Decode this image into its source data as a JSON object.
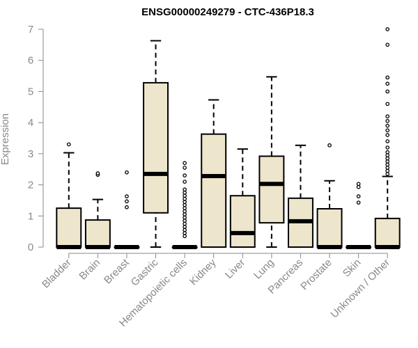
{
  "chart_data": {
    "type": "boxplot",
    "title": "ENSG00000249279 - CTC-436P18.3",
    "xlabel": "",
    "ylabel": "Expression",
    "ylim": [
      0,
      7
    ],
    "yticks": [
      0,
      1,
      2,
      3,
      4,
      5,
      6,
      7
    ],
    "grid": false,
    "legend": "none",
    "colors": {
      "box_fill": "#ede6cc",
      "box_stroke": "#000000",
      "axis": "#888888"
    },
    "categories": [
      "Bladder",
      "Brain",
      "Breast",
      "Gastric",
      "Hematopoietic cells",
      "Kidney",
      "Liver",
      "Lung",
      "Pancreas",
      "Prostate",
      "Skin",
      "Unknown / Other"
    ],
    "boxes": [
      {
        "category": "Bladder",
        "whisker_low": 0,
        "q1": 0,
        "median": 0,
        "q3": 1.25,
        "whisker_high": 3.03,
        "outliers": [
          3.3
        ]
      },
      {
        "category": "Brain",
        "whisker_low": 0,
        "q1": 0,
        "median": 0,
        "q3": 0.87,
        "whisker_high": 1.53,
        "outliers": [
          2.32,
          2.37
        ]
      },
      {
        "category": "Breast",
        "whisker_low": 0,
        "q1": 0,
        "median": 0,
        "q3": 0,
        "whisker_high": 0,
        "outliers": [
          1.28,
          1.47,
          1.63,
          2.4
        ]
      },
      {
        "category": "Gastric",
        "whisker_low": 0,
        "q1": 1.1,
        "median": 2.35,
        "q3": 5.28,
        "whisker_high": 6.63,
        "outliers": []
      },
      {
        "category": "Hematopoietic cells",
        "whisker_low": 0,
        "q1": 0,
        "median": 0,
        "q3": 0,
        "whisker_high": 0,
        "outliers": [
          0.35,
          0.45,
          0.55,
          0.65,
          0.75,
          0.85,
          0.95,
          1.05,
          1.15,
          1.25,
          1.35,
          1.45,
          1.55,
          1.65,
          1.75,
          1.85,
          2.1,
          2.3,
          2.55,
          2.7
        ]
      },
      {
        "category": "Kidney",
        "whisker_low": 0,
        "q1": 0,
        "median": 2.28,
        "q3": 3.63,
        "whisker_high": 4.73,
        "outliers": []
      },
      {
        "category": "Liver",
        "whisker_low": 0,
        "q1": 0,
        "median": 0.45,
        "q3": 1.65,
        "whisker_high": 3.15,
        "outliers": []
      },
      {
        "category": "Lung",
        "whisker_low": 0,
        "q1": 0.78,
        "median": 2.03,
        "q3": 2.92,
        "whisker_high": 5.47,
        "outliers": []
      },
      {
        "category": "Pancreas",
        "whisker_low": 0,
        "q1": 0,
        "median": 0.83,
        "q3": 1.57,
        "whisker_high": 3.27,
        "outliers": []
      },
      {
        "category": "Prostate",
        "whisker_low": 0,
        "q1": 0,
        "median": 0,
        "q3": 1.23,
        "whisker_high": 2.13,
        "outliers": [
          3.27
        ]
      },
      {
        "category": "Skin",
        "whisker_low": 0,
        "q1": 0,
        "median": 0,
        "q3": 0,
        "whisker_high": 0,
        "outliers": [
          1.43,
          1.63,
          1.93,
          2.03
        ]
      },
      {
        "category": "Unknown / Other",
        "whisker_low": 0,
        "q1": 0,
        "median": 0,
        "q3": 0.92,
        "whisker_high": 2.27,
        "outliers": [
          2.35,
          2.45,
          2.55,
          2.65,
          2.75,
          2.85,
          2.95,
          3.05,
          3.2,
          3.4,
          3.6,
          3.75,
          3.9,
          4.05,
          4.2,
          4.6,
          5.0,
          5.25,
          5.45,
          6.5,
          7.0
        ]
      }
    ]
  }
}
